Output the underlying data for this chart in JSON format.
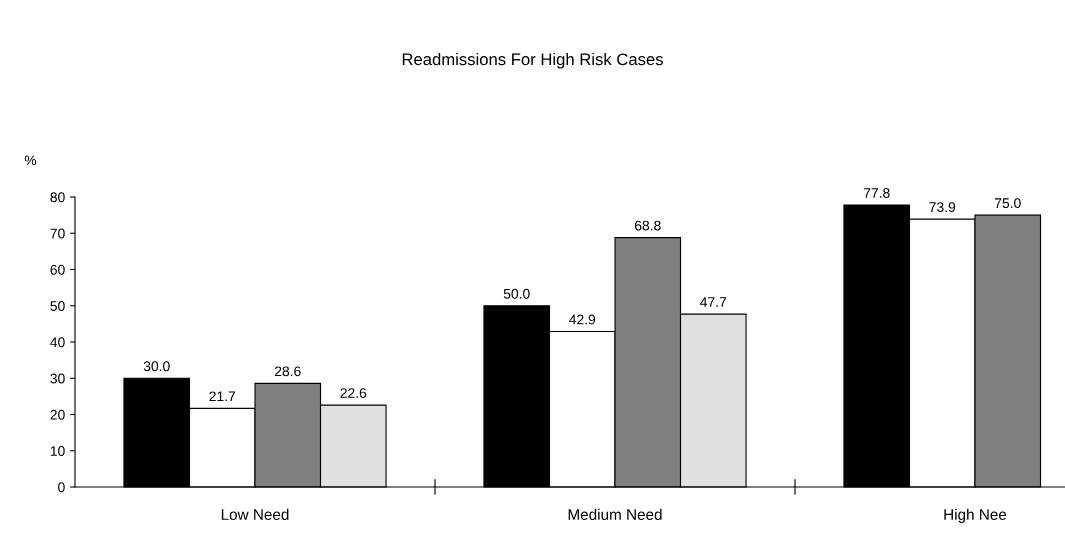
{
  "chart_data": {
    "type": "bar",
    "title": "Readmissions For High Risk Cases",
    "ylabel": "%",
    "categories": [
      "Low Need",
      "Medium Need",
      "High Nee"
    ],
    "series": [
      {
        "color": "#000000",
        "values": [
          30.0,
          50.0,
          77.8
        ],
        "value_labels": [
          "30.0",
          "50.0",
          "77.8"
        ]
      },
      {
        "color": "#ffffff",
        "values": [
          21.7,
          42.9,
          73.9
        ],
        "value_labels": [
          "21.7",
          "42.9",
          "73.9"
        ]
      },
      {
        "color": "#808080",
        "values": [
          28.6,
          68.8,
          75.0
        ],
        "value_labels": [
          "28.6",
          "68.8",
          "75.0"
        ]
      },
      {
        "color": "#e0e0e0",
        "values": [
          22.6,
          47.7,
          null
        ],
        "value_labels": [
          "22.6",
          "47.7",
          null
        ]
      }
    ],
    "ylim": [
      0,
      80
    ],
    "yticks": [
      0,
      10,
      20,
      30,
      40,
      50,
      60,
      70,
      80
    ],
    "grid": false,
    "legend": false
  }
}
